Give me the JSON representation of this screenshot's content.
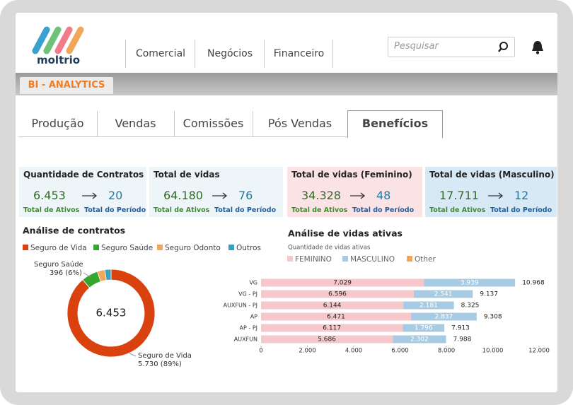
{
  "header": {
    "logo": "moltrio",
    "nav": [
      "Comercial",
      "Negócios",
      "Financeiro"
    ],
    "search_placeholder": "Pesquisar"
  },
  "section_tab": "BI - ANALYTICS",
  "tabs": [
    "Produção",
    "Vendas",
    "Comissões",
    "Pós Vendas",
    "Benefícios"
  ],
  "active_tab": 4,
  "kpis": [
    {
      "title": "Quantidade de Contratos",
      "active": "6.453",
      "period": "20",
      "active_label": "Total de Ativos",
      "period_label": "Total do Período",
      "color": "#eef5f9"
    },
    {
      "title": "Total de vidas",
      "active": "64.180",
      "period": "76",
      "active_label": "Total de Ativos",
      "period_label": "Total do Período",
      "color": "#eef5f9"
    },
    {
      "title": "Total de vidas (Feminino)",
      "active": "34.328",
      "period": "48",
      "active_label": "Total de Ativos",
      "period_label": "Total do Período",
      "color": "#fbe3e5"
    },
    {
      "title": "Total de vidas (Masculino)",
      "active": "17.711",
      "period": "12",
      "active_label": "Total de Ativos",
      "period_label": "Total do Período",
      "color": "#d7e9f5"
    }
  ],
  "donut": {
    "type": "pie",
    "title": "Análise de contratos",
    "center_label": "6.453",
    "series": [
      {
        "name": "Seguro de Vida",
        "color": "#d9410f",
        "value": 5730,
        "value_label": "5.730 (89%)"
      },
      {
        "name": "Seguro Saúde",
        "color": "#35a62f",
        "value": 396,
        "value_label": "396 (6%)"
      },
      {
        "name": "Seguro Odonto",
        "color": "#f2a65a",
        "value": 180
      },
      {
        "name": "Outros",
        "color": "#3a9fc0",
        "value": 147
      }
    ]
  },
  "bars": {
    "type": "bar",
    "title": "Análise de vidas ativas",
    "subtitle": "Quantidade de vidas ativas",
    "categories": [
      "VG",
      "VG - PJ",
      "AUXFUN - PJ",
      "AP",
      "AP - PJ",
      "AUXFUN"
    ],
    "series": [
      {
        "name": "FEMININO",
        "color": "#f6c8cc",
        "values": [
          7029,
          6596,
          6144,
          6471,
          6117,
          5686
        ],
        "value_labels": [
          "7.029",
          "6.596",
          "6.144",
          "6.471",
          "6.117",
          "5.686"
        ]
      },
      {
        "name": "MASCULINO",
        "color": "#a8cbe4",
        "values": [
          3939,
          2541,
          2181,
          2837,
          1796,
          2302
        ],
        "value_labels": [
          "3.939",
          "2.541",
          "2.181",
          "2.837",
          "1.796",
          "2.302"
        ]
      },
      {
        "name": "Other",
        "color": "#f3a55a",
        "values": [
          0,
          0,
          0,
          0,
          0,
          0
        ]
      }
    ],
    "totals": [
      10968,
      9137,
      8325,
      9308,
      7913,
      7988
    ],
    "total_labels": [
      "10.968",
      "9.137",
      "8.325",
      "9.308",
      "7.913",
      "7.988"
    ],
    "xlim": [
      0,
      12000
    ],
    "xticks": [
      0,
      {
        "value": 2000,
        "label": "2.000"
      },
      {
        "value": 4000,
        "label": "4.000"
      },
      {
        "value": 6000,
        "label": "6.000"
      },
      {
        "value": 8000,
        "label": "8.000"
      },
      {
        "value": 10000,
        "label": "10.000"
      },
      {
        "value": 12000,
        "label": "12.000"
      }
    ]
  }
}
